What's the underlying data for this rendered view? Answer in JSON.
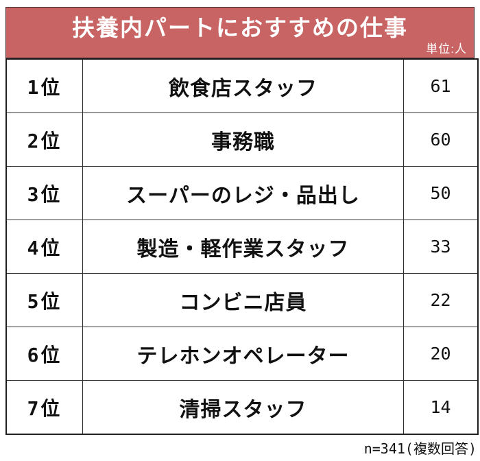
{
  "header": {
    "title": "扶養内パートにおすすめの仕事",
    "unit_label": "単位:人",
    "banner_color": "#c96464",
    "title_color": "#ffffff"
  },
  "table": {
    "rows": [
      {
        "rank": "1位",
        "job": "飲食店スタッフ",
        "count": "61"
      },
      {
        "rank": "2位",
        "job": "事務職",
        "count": "60"
      },
      {
        "rank": "3位",
        "job": "スーパーのレジ・品出し",
        "count": "50"
      },
      {
        "rank": "4位",
        "job": "製造・軽作業スタッフ",
        "count": "33"
      },
      {
        "rank": "5位",
        "job": "コンビニ店員",
        "count": "22"
      },
      {
        "rank": "6位",
        "job": "テレホンオペレーター",
        "count": "20"
      },
      {
        "rank": "7位",
        "job": "清掃スタッフ",
        "count": "14"
      }
    ]
  },
  "footer": {
    "note": "n=341(複数回答)"
  },
  "chart_data": {
    "type": "table",
    "title": "扶養内パートにおすすめの仕事",
    "unit": "単位:人",
    "ranks": [
      "1位",
      "2位",
      "3位",
      "4位",
      "5位",
      "6位",
      "7位"
    ],
    "categories": [
      "飲食店スタッフ",
      "事務職",
      "スーパーのレジ・品出し",
      "製造・軽作業スタッフ",
      "コンビニ店員",
      "テレホンオペレーター",
      "清掃スタッフ"
    ],
    "values": [
      61,
      60,
      50,
      33,
      22,
      20,
      14
    ],
    "n": 341,
    "note": "n=341(複数回答)"
  }
}
